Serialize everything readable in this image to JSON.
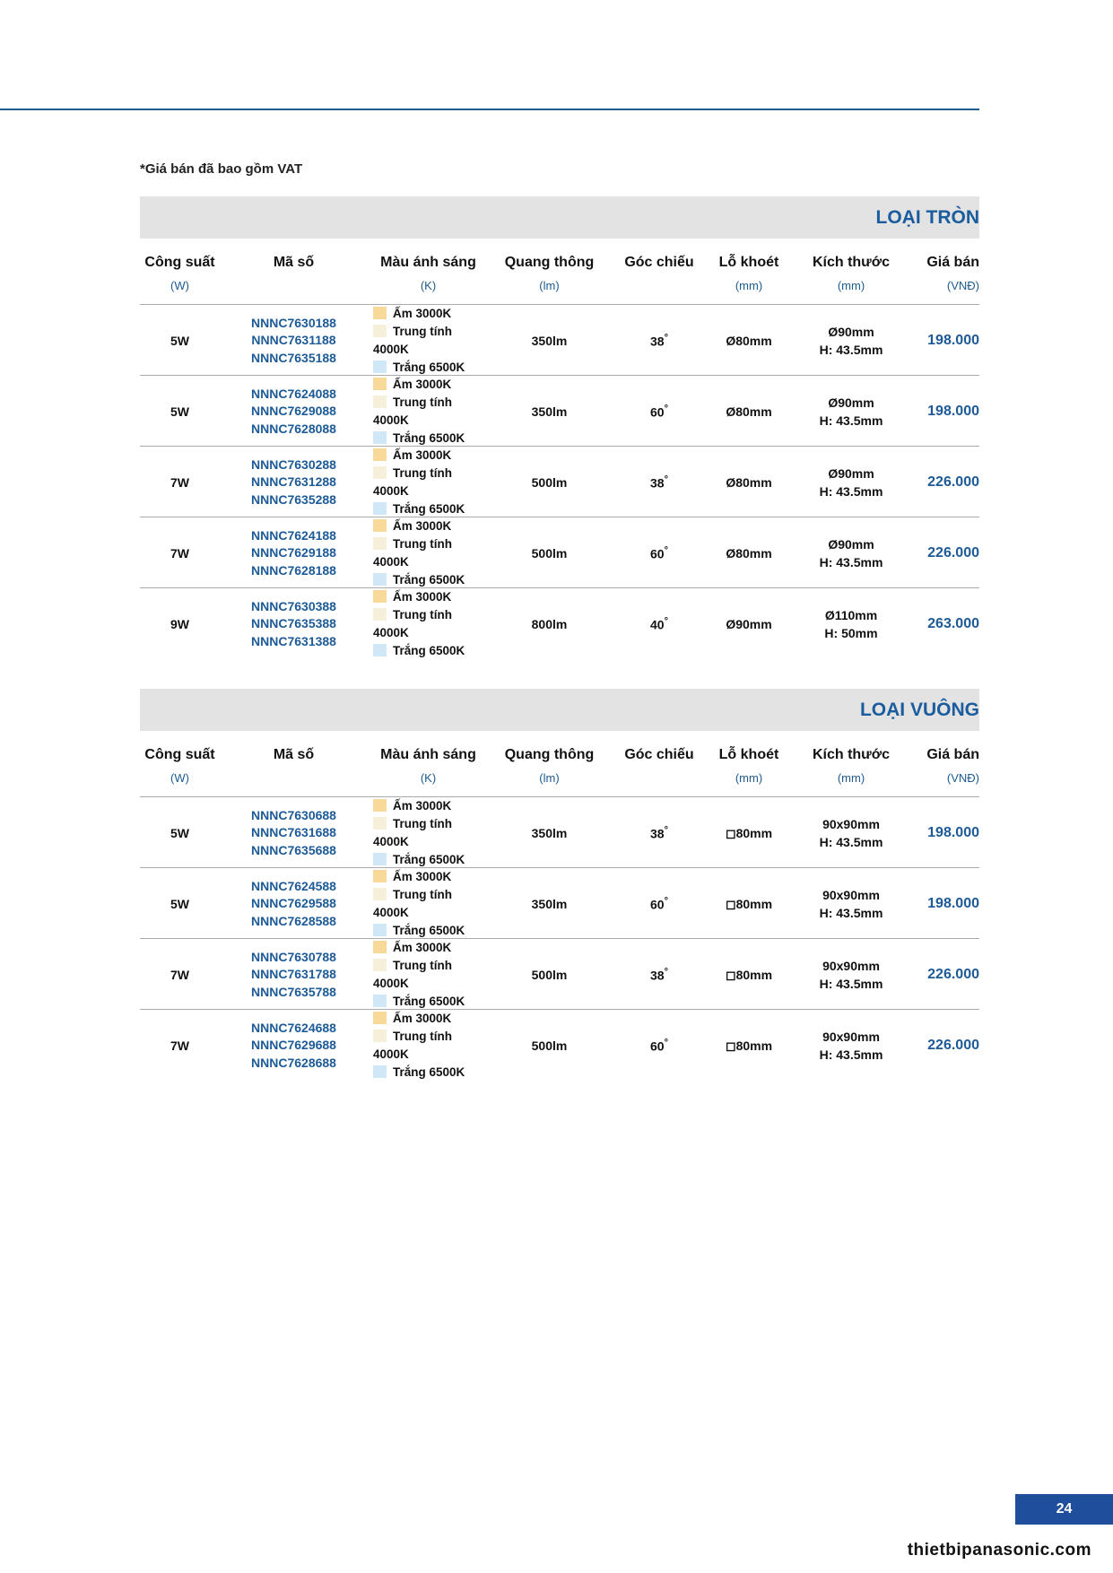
{
  "note": "*Giá bán đã bao gồm VAT",
  "colors": {
    "accent": "#1d5a96",
    "band": "#e3e3e3",
    "warm": "#f8d99a",
    "neutral": "#f6efd9",
    "white": "#cfe7f7"
  },
  "headers": [
    {
      "title": "Công suất",
      "unit": "(W)"
    },
    {
      "title": "Mã số",
      "unit": ""
    },
    {
      "title": "Màu ánh sáng",
      "unit": "(K)"
    },
    {
      "title": "Quang thông",
      "unit": "(lm)"
    },
    {
      "title": "Góc chiếu",
      "unit": ""
    },
    {
      "title": "Lỗ khoét",
      "unit": "(mm)"
    },
    {
      "title": "Kích thước",
      "unit": "(mm)"
    },
    {
      "title": "Giá bán",
      "unit": "(VNĐ)"
    }
  ],
  "light_colors": [
    "Ấm 3000K",
    "Trung tính 4000K",
    "Trắng 6500K"
  ],
  "sections": [
    {
      "title": "LOẠI TRÒN",
      "rows": [
        {
          "power": "5W",
          "codes": [
            "NNNC7630188",
            "NNNC7631188",
            "NNNC7635188"
          ],
          "lumen": "350lm",
          "angle": "38",
          "hole": "Ø80mm",
          "size1": "Ø90mm",
          "size2": "H: 43.5mm",
          "price": "198.000"
        },
        {
          "power": "5W",
          "codes": [
            "NNNC7624088",
            "NNNC7629088",
            "NNNC7628088"
          ],
          "lumen": "350lm",
          "angle": "60",
          "hole": "Ø80mm",
          "size1": "Ø90mm",
          "size2": "H: 43.5mm",
          "price": "198.000"
        },
        {
          "power": "7W",
          "codes": [
            "NNNC7630288",
            "NNNC7631288",
            "NNNC7635288"
          ],
          "lumen": "500lm",
          "angle": "38",
          "hole": "Ø80mm",
          "size1": "Ø90mm",
          "size2": "H: 43.5mm",
          "price": "226.000"
        },
        {
          "power": "7W",
          "codes": [
            "NNNC7624188",
            "NNNC7629188",
            "NNNC7628188"
          ],
          "lumen": "500lm",
          "angle": "60",
          "hole": "Ø80mm",
          "size1": "Ø90mm",
          "size2": "H: 43.5mm",
          "price": "226.000"
        },
        {
          "power": "9W",
          "codes": [
            "NNNC7630388",
            "NNNC7635388",
            "NNNC7631388"
          ],
          "lumen": "800lm",
          "angle": "40",
          "hole": "Ø90mm",
          "size1": "Ø110mm",
          "size2": "H: 50mm",
          "price": "263.000"
        }
      ]
    },
    {
      "title": "LOẠI VUÔNG",
      "rows": [
        {
          "power": "5W",
          "codes": [
            "NNNC7630688",
            "NNNC7631688",
            "NNNC7635688"
          ],
          "lumen": "350lm",
          "angle": "38",
          "hole": "◻80mm",
          "size1": "90x90mm",
          "size2": "H: 43.5mm",
          "price": "198.000"
        },
        {
          "power": "5W",
          "codes": [
            "NNNC7624588",
            "NNNC7629588",
            "NNNC7628588"
          ],
          "lumen": "350lm",
          "angle": "60",
          "hole": "◻80mm",
          "size1": "90x90mm",
          "size2": "H: 43.5mm",
          "price": "198.000"
        },
        {
          "power": "7W",
          "codes": [
            "NNNC7630788",
            "NNNC7631788",
            "NNNC7635788"
          ],
          "lumen": "500lm",
          "angle": "38",
          "hole": "◻80mm",
          "size1": "90x90mm",
          "size2": "H: 43.5mm",
          "price": "226.000"
        },
        {
          "power": "7W",
          "codes": [
            "NNNC7624688",
            "NNNC7629688",
            "NNNC7628688"
          ],
          "lumen": "500lm",
          "angle": "60",
          "hole": "◻80mm",
          "size1": "90x90mm",
          "size2": "H: 43.5mm",
          "price": "226.000"
        }
      ]
    }
  ],
  "degree": "°",
  "page_number": "24",
  "website": "thietbipanasonic.com"
}
